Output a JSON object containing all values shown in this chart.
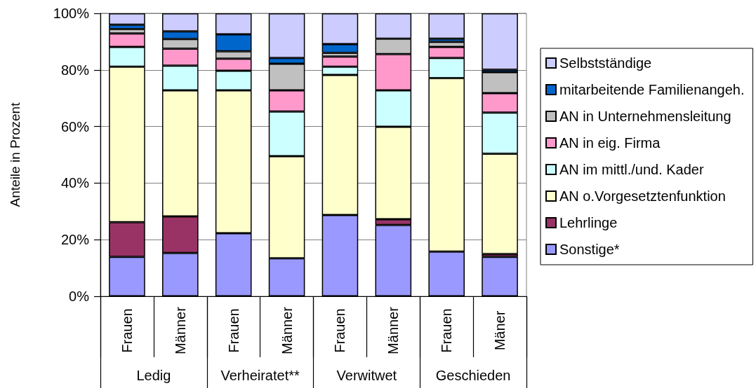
{
  "chart_data": {
    "type": "bar",
    "stacked": true,
    "categories": [
      "Frauen",
      "Männer",
      "Frauen",
      "Männer",
      "Frauen",
      "Männer",
      "Frauen",
      "Mäner"
    ],
    "annotations": [
      "Ledig",
      "Verheiratet**",
      "Verwitwet",
      "Geschieden"
    ],
    "ylabel": "Anteile in Prozent",
    "ylim": [
      0,
      100
    ],
    "yticks": [
      {
        "value": 0,
        "label": "0%"
      },
      {
        "value": 20,
        "label": "20%"
      },
      {
        "value": 40,
        "label": "40%"
      },
      {
        "value": 60,
        "label": "60%"
      },
      {
        "value": 80,
        "label": "80%"
      },
      {
        "value": 100,
        "label": "100%"
      }
    ],
    "grid": "y",
    "legend": "right",
    "series": [
      {
        "name": "Sonstige*",
        "color": "#9999ff",
        "values": [
          13.9,
          15.3,
          22.3,
          13.4,
          28.7,
          25.2,
          15.8,
          13.9
        ]
      },
      {
        "name": "Lehrlinge",
        "color": "#993366",
        "values": [
          12.3,
          12.9,
          null,
          null,
          null,
          2.0,
          null,
          1.0
        ]
      },
      {
        "name": "AN o.Vorgesetztenfunktion",
        "color": "#ffffcc",
        "values": [
          54.9,
          44.6,
          50.5,
          36.1,
          49.5,
          32.7,
          61.3,
          35.5
        ]
      },
      {
        "name": "AN im mittl./und. Kader",
        "color": "#ccffff",
        "values": [
          7.0,
          8.7,
          6.9,
          15.8,
          2.9,
          12.9,
          7.1,
          14.5
        ]
      },
      {
        "name": "AN in eig. Firma",
        "color": "#ff99cc",
        "values": [
          4.8,
          6.0,
          4.3,
          7.5,
          3.6,
          12.8,
          3.9,
          6.9
        ]
      },
      {
        "name": "AN in Unternehmensleitung",
        "color": "#c0c0c0",
        "values": [
          1.5,
          3.4,
          2.6,
          9.4,
          1.3,
          5.4,
          1.8,
          7.4
        ]
      },
      {
        "name": "mitarbeitende Familienangeh.",
        "color": "#0066cc",
        "values": [
          1.6,
          2.7,
          6.0,
          2.0,
          3.1,
          null,
          1.1,
          0.9
        ]
      },
      {
        "name": "Selbstständige",
        "color": "#ccccff",
        "values": [
          4.0,
          6.4,
          7.4,
          15.8,
          10.9,
          9.0,
          9.0,
          19.9
        ]
      }
    ]
  }
}
